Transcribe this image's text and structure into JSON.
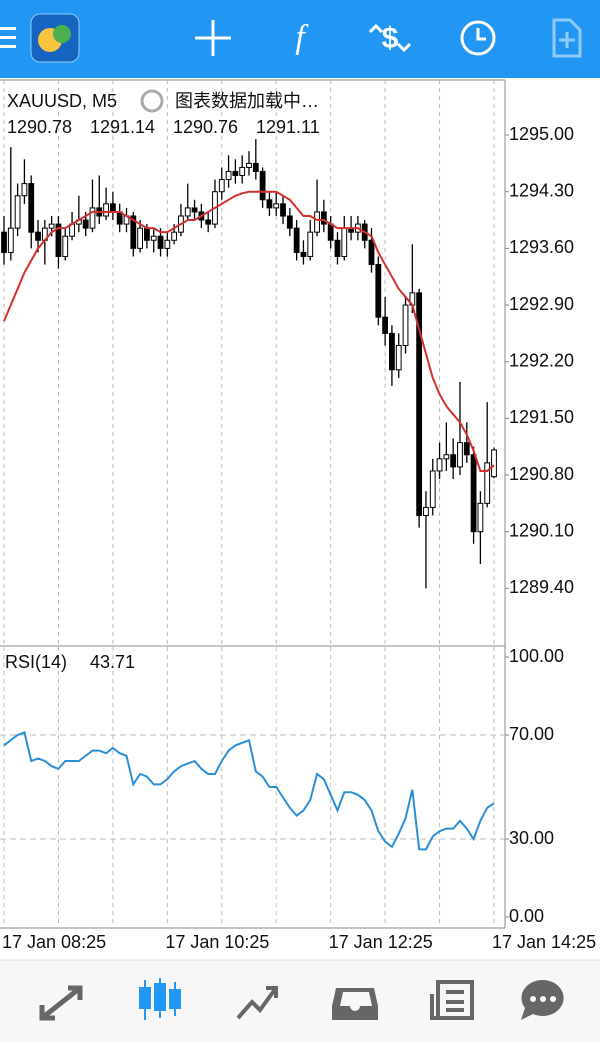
{
  "chart_data": [
    {
      "type": "candlestick",
      "title": "XAUUSD, M5",
      "subtitle": "图表数据加载中…",
      "open": [
        1293.8,
        1293.55,
        1293.85,
        1294.25,
        1294.4,
        1293.8,
        1293.7,
        1293.85,
        1293.9,
        1293.5,
        1293.75,
        1293.9,
        1293.95,
        1293.85,
        1294.1,
        1294.0,
        1294.15,
        1294.05,
        1293.9,
        1294.0,
        1293.6,
        1293.85,
        1293.7,
        1293.75,
        1293.6,
        1293.7,
        1293.8,
        1294.0,
        1294.1,
        1294.05,
        1293.95,
        1293.9,
        1294.3,
        1294.45,
        1294.55,
        1294.5,
        1294.6,
        1294.65,
        1294.55,
        1294.2,
        1294.1,
        1294.15,
        1294.0,
        1293.85,
        1293.55,
        1293.5,
        1293.8,
        1294.05,
        1293.9,
        1293.7,
        1293.5,
        1293.85,
        1293.8,
        1293.9,
        1293.7,
        1293.4,
        1292.75,
        1292.55,
        1292.1,
        1292.4,
        1292.9,
        1293.05,
        1290.3,
        1290.4,
        1290.85,
        1291.0,
        1291.05,
        1290.9,
        1291.2,
        1291.05,
        1290.1,
        1290.45,
        1290.78
      ],
      "high": [
        1294.0,
        1294.85,
        1294.4,
        1294.7,
        1294.5,
        1293.95,
        1293.95,
        1294.0,
        1294.0,
        1293.85,
        1294.05,
        1294.25,
        1294.05,
        1294.45,
        1294.5,
        1294.35,
        1294.3,
        1294.15,
        1294.1,
        1294.05,
        1293.95,
        1293.9,
        1293.85,
        1293.85,
        1293.8,
        1293.9,
        1294.15,
        1294.4,
        1294.2,
        1294.15,
        1294.05,
        1294.45,
        1294.6,
        1294.75,
        1294.7,
        1294.75,
        1294.8,
        1294.95,
        1294.6,
        1294.3,
        1294.3,
        1294.25,
        1294.1,
        1293.95,
        1293.7,
        1293.95,
        1294.45,
        1294.2,
        1294.0,
        1293.8,
        1294.0,
        1294.0,
        1294.0,
        1293.95,
        1293.85,
        1293.5,
        1293.0,
        1292.65,
        1292.55,
        1293.0,
        1293.65,
        1293.1,
        1290.6,
        1291.0,
        1291.2,
        1291.45,
        1291.25,
        1291.95,
        1291.45,
        1291.15,
        1290.6,
        1291.7,
        1291.14
      ],
      "low": [
        1293.4,
        1293.45,
        1293.75,
        1294.15,
        1293.6,
        1293.55,
        1293.4,
        1293.75,
        1293.35,
        1293.45,
        1293.7,
        1293.8,
        1293.75,
        1293.8,
        1293.9,
        1293.95,
        1293.95,
        1293.8,
        1293.8,
        1293.5,
        1293.55,
        1293.6,
        1293.55,
        1293.5,
        1293.5,
        1293.65,
        1293.75,
        1293.95,
        1293.95,
        1293.85,
        1293.8,
        1293.85,
        1294.2,
        1294.35,
        1294.4,
        1294.4,
        1294.5,
        1294.45,
        1294.1,
        1294.0,
        1294.0,
        1293.9,
        1293.75,
        1293.45,
        1293.4,
        1293.45,
        1293.75,
        1293.8,
        1293.6,
        1293.4,
        1293.45,
        1293.7,
        1293.7,
        1293.6,
        1293.3,
        1292.65,
        1292.4,
        1291.9,
        1292.0,
        1292.3,
        1292.8,
        1290.15,
        1289.4,
        1290.3,
        1290.75,
        1290.85,
        1290.75,
        1290.8,
        1290.95,
        1289.95,
        1289.7,
        1290.4,
        1290.76
      ],
      "close": [
        1293.55,
        1293.85,
        1294.25,
        1294.4,
        1293.8,
        1293.7,
        1293.85,
        1293.9,
        1293.5,
        1293.75,
        1293.9,
        1293.95,
        1293.85,
        1294.1,
        1294.0,
        1294.15,
        1294.05,
        1293.9,
        1294.0,
        1293.6,
        1293.85,
        1293.7,
        1293.75,
        1293.6,
        1293.7,
        1293.8,
        1294.0,
        1294.1,
        1294.05,
        1293.95,
        1293.9,
        1294.3,
        1294.45,
        1294.55,
        1294.5,
        1294.6,
        1294.65,
        1294.55,
        1294.2,
        1294.1,
        1294.15,
        1294.0,
        1293.85,
        1293.55,
        1293.5,
        1293.8,
        1294.05,
        1293.9,
        1293.7,
        1293.5,
        1293.85,
        1293.8,
        1293.9,
        1293.7,
        1293.4,
        1292.75,
        1292.55,
        1292.1,
        1292.4,
        1292.9,
        1293.05,
        1290.3,
        1290.4,
        1290.85,
        1291.0,
        1291.05,
        1290.9,
        1291.2,
        1291.05,
        1290.1,
        1290.45,
        1290.95,
        1291.11
      ],
      "up_color": "#ffffff",
      "down_color": "#000000",
      "series": [
        {
          "color": "#d32f2f",
          "values": [
            1292.7,
            1292.9,
            1293.1,
            1293.3,
            1293.45,
            1293.6,
            1293.7,
            1293.8,
            1293.85,
            1293.85,
            1293.9,
            1293.95,
            1294.0,
            1294.05,
            1294.05,
            1294.05,
            1294.05,
            1294.05,
            1294.0,
            1293.95,
            1293.9,
            1293.85,
            1293.85,
            1293.8,
            1293.8,
            1293.85,
            1293.9,
            1293.95,
            1293.95,
            1294.0,
            1294.05,
            1294.1,
            1294.15,
            1294.2,
            1294.25,
            1294.28,
            1294.3,
            1294.3,
            1294.3,
            1294.3,
            1294.3,
            1294.25,
            1294.2,
            1294.1,
            1294.0,
            1294.0,
            1293.95,
            1293.95,
            1293.9,
            1293.85,
            1293.85,
            1293.85,
            1293.85,
            1293.8,
            1293.75,
            1293.55,
            1293.4,
            1293.25,
            1293.1,
            1293.0,
            1292.9,
            1292.6,
            1292.3,
            1292.0,
            1291.8,
            1291.65,
            1291.55,
            1291.45,
            1291.3,
            1291.1,
            1290.85,
            1290.85,
            1290.92
          ]
        }
      ],
      "ylim": [
        1288.7,
        1295.68
      ],
      "yticks": [
        {
          "value": 1295,
          "label": "1295.00"
        },
        {
          "value": 1294.3,
          "label": "1294.30"
        },
        {
          "value": 1293.6,
          "label": "1293.60"
        },
        {
          "value": 1292.9,
          "label": "1292.90"
        },
        {
          "value": 1292.2,
          "label": "1292.20"
        },
        {
          "value": 1291.5,
          "label": "1291.50"
        },
        {
          "value": 1290.8,
          "label": "1290.80"
        },
        {
          "value": 1290.1,
          "label": "1290.10"
        },
        {
          "value": 1289.4,
          "label": "1289.40"
        }
      ],
      "grid": false
    },
    {
      "type": "line",
      "title": "RSI(14)",
      "categories": [
        "17 Jan 08:25",
        null,
        null,
        null,
        null,
        null,
        null,
        null,
        null,
        null,
        null,
        null,
        null,
        null,
        null,
        null,
        null,
        null,
        null,
        null,
        null,
        null,
        null,
        null,
        "17 Jan 10:25",
        null,
        null,
        null,
        null,
        null,
        null,
        null,
        null,
        null,
        null,
        null,
        null,
        null,
        null,
        null,
        null,
        null,
        null,
        null,
        null,
        null,
        null,
        null,
        "17 Jan 12:25",
        null,
        null,
        null,
        null,
        null,
        null,
        null,
        null,
        null,
        null,
        null,
        null,
        null,
        null,
        null,
        null,
        null,
        null,
        null,
        null,
        null,
        null,
        null,
        "17 Jan 14:25"
      ],
      "values": [
        66,
        68,
        70,
        71,
        60,
        61,
        60,
        58,
        57,
        60,
        60,
        60,
        62,
        64,
        64,
        63,
        65,
        63,
        62,
        51,
        55,
        54,
        51,
        51,
        53,
        56,
        58,
        59,
        60,
        57,
        55,
        55,
        60,
        64,
        66,
        67,
        68,
        56,
        54,
        50,
        50,
        46,
        42,
        39,
        41,
        45,
        55,
        53,
        47,
        41,
        48,
        48,
        47,
        45,
        41,
        33,
        29,
        27,
        32,
        38,
        49,
        26,
        26,
        31,
        33,
        34,
        34,
        37,
        34,
        30,
        37,
        42,
        43.71
      ],
      "color": "#2b8fd6",
      "ylim": [
        0,
        100
      ],
      "yticks": [
        {
          "value": 100,
          "label": "100.00"
        },
        {
          "value": 70,
          "label": "70.00"
        },
        {
          "value": 30,
          "label": "30.00"
        },
        {
          "value": 0,
          "label": "0.00"
        }
      ],
      "grid": true
    }
  ]
}
